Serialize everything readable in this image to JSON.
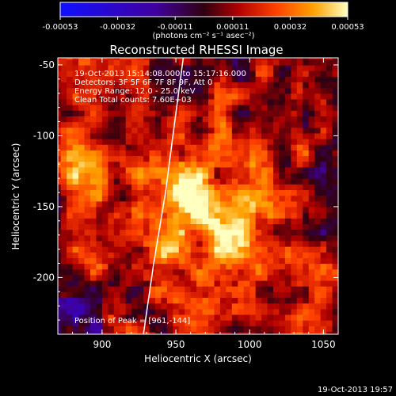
{
  "chart_data": {
    "type": "heatmap",
    "title": "Reconstructed RHESSI Image",
    "xlabel": "Heliocentric X (arcsec)",
    "ylabel": "Heliocentric Y (arcsec)",
    "xlim": [
      870,
      1060
    ],
    "ylim": [
      -240,
      -45
    ],
    "xticks": [
      900,
      950,
      1000,
      1050
    ],
    "yticks": [
      -50,
      -100,
      -150,
      -200
    ],
    "colorbar": {
      "units": "(photons cm⁻² s⁻¹ asec⁻²)",
      "range": [
        -0.00053,
        0.00053
      ],
      "ticks": [
        "-0.00053",
        "-0.00032",
        "-0.00011",
        "0.00011",
        "0.00032",
        "0.00053"
      ]
    },
    "info_lines": [
      "19-Oct-2013 15:14:08.000 to 15:17:16.000",
      "Detectors: 3F 5F 6F 7F 8F 9F, Att 0",
      "Energy Range: 12.0 - 25.0 keV",
      "Clean     Total counts: 7.60E+03"
    ],
    "peak_label": "Position of Peak = [961,-144]",
    "peak": {
      "x": 961,
      "y": -144
    },
    "limb": [
      [
        955,
        -45
      ],
      [
        948,
        -100
      ],
      [
        943,
        -140
      ],
      [
        935,
        -190
      ],
      [
        928,
        -240
      ]
    ],
    "timestamp": "19-Oct-2013 19:57"
  }
}
